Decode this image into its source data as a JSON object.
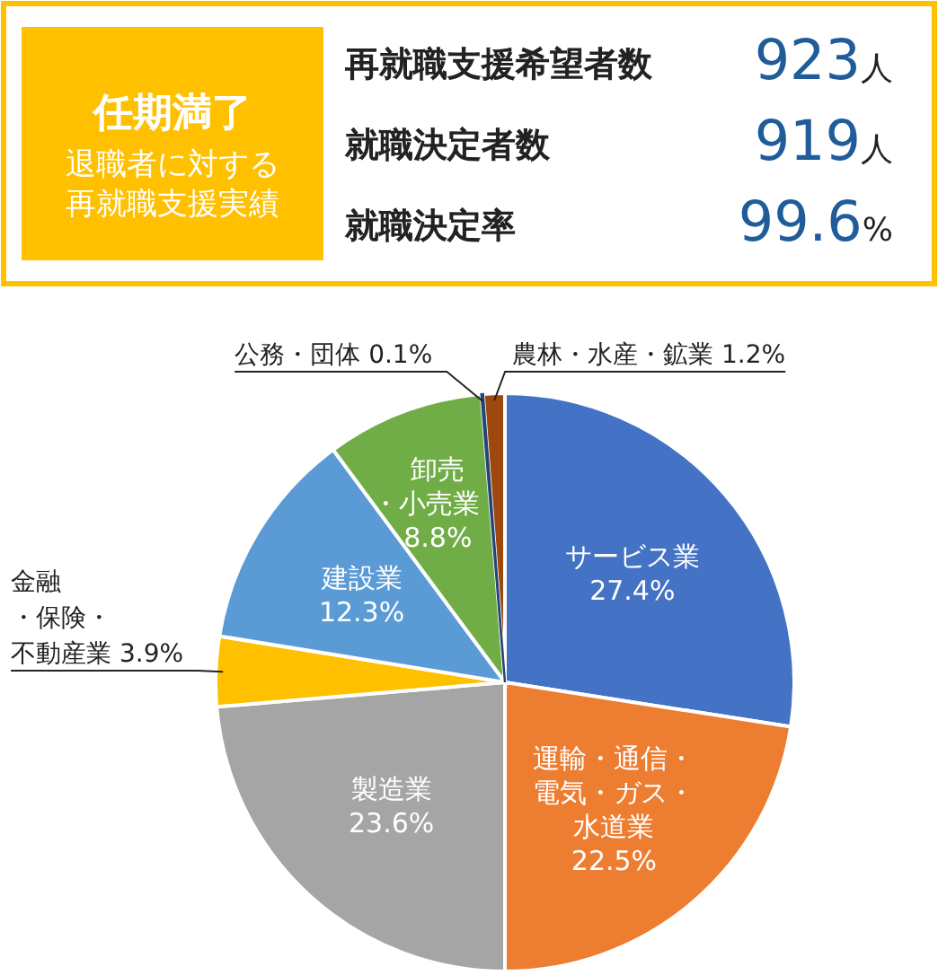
{
  "chart_data": [
    {
      "type": "other",
      "title": "任期満了",
      "subtitle": "退職者に対する再就職支援実績",
      "annotations": [
        "再就職支援希望者数",
        "923人",
        "就職決定者数",
        "919人",
        "就職決定率",
        "99.6%"
      ]
    },
    {
      "type": "pie",
      "categories": [
        "サービス業",
        "運輸・通信・電気・ガス・水道業",
        "製造業",
        "金融・保険・不動産業",
        "建設業",
        "卸売・小売業",
        "公務・団体",
        "農林・水産・鉱業"
      ],
      "values": [
        27.4,
        22.5,
        23.6,
        3.9,
        12.3,
        8.8,
        0.1,
        1.2
      ],
      "value_labels": [
        "27.4%",
        "22.5%",
        "23.6%",
        "3.9%",
        "12.3%",
        "8.8%",
        "0.1%",
        "1.2%"
      ],
      "colors": [
        "#4472c4",
        "#ed7d31",
        "#a5a5a5",
        "#ffc000",
        "#5b9bd5",
        "#70ad47",
        "#264478",
        "#9e480e"
      ]
    }
  ]
}
